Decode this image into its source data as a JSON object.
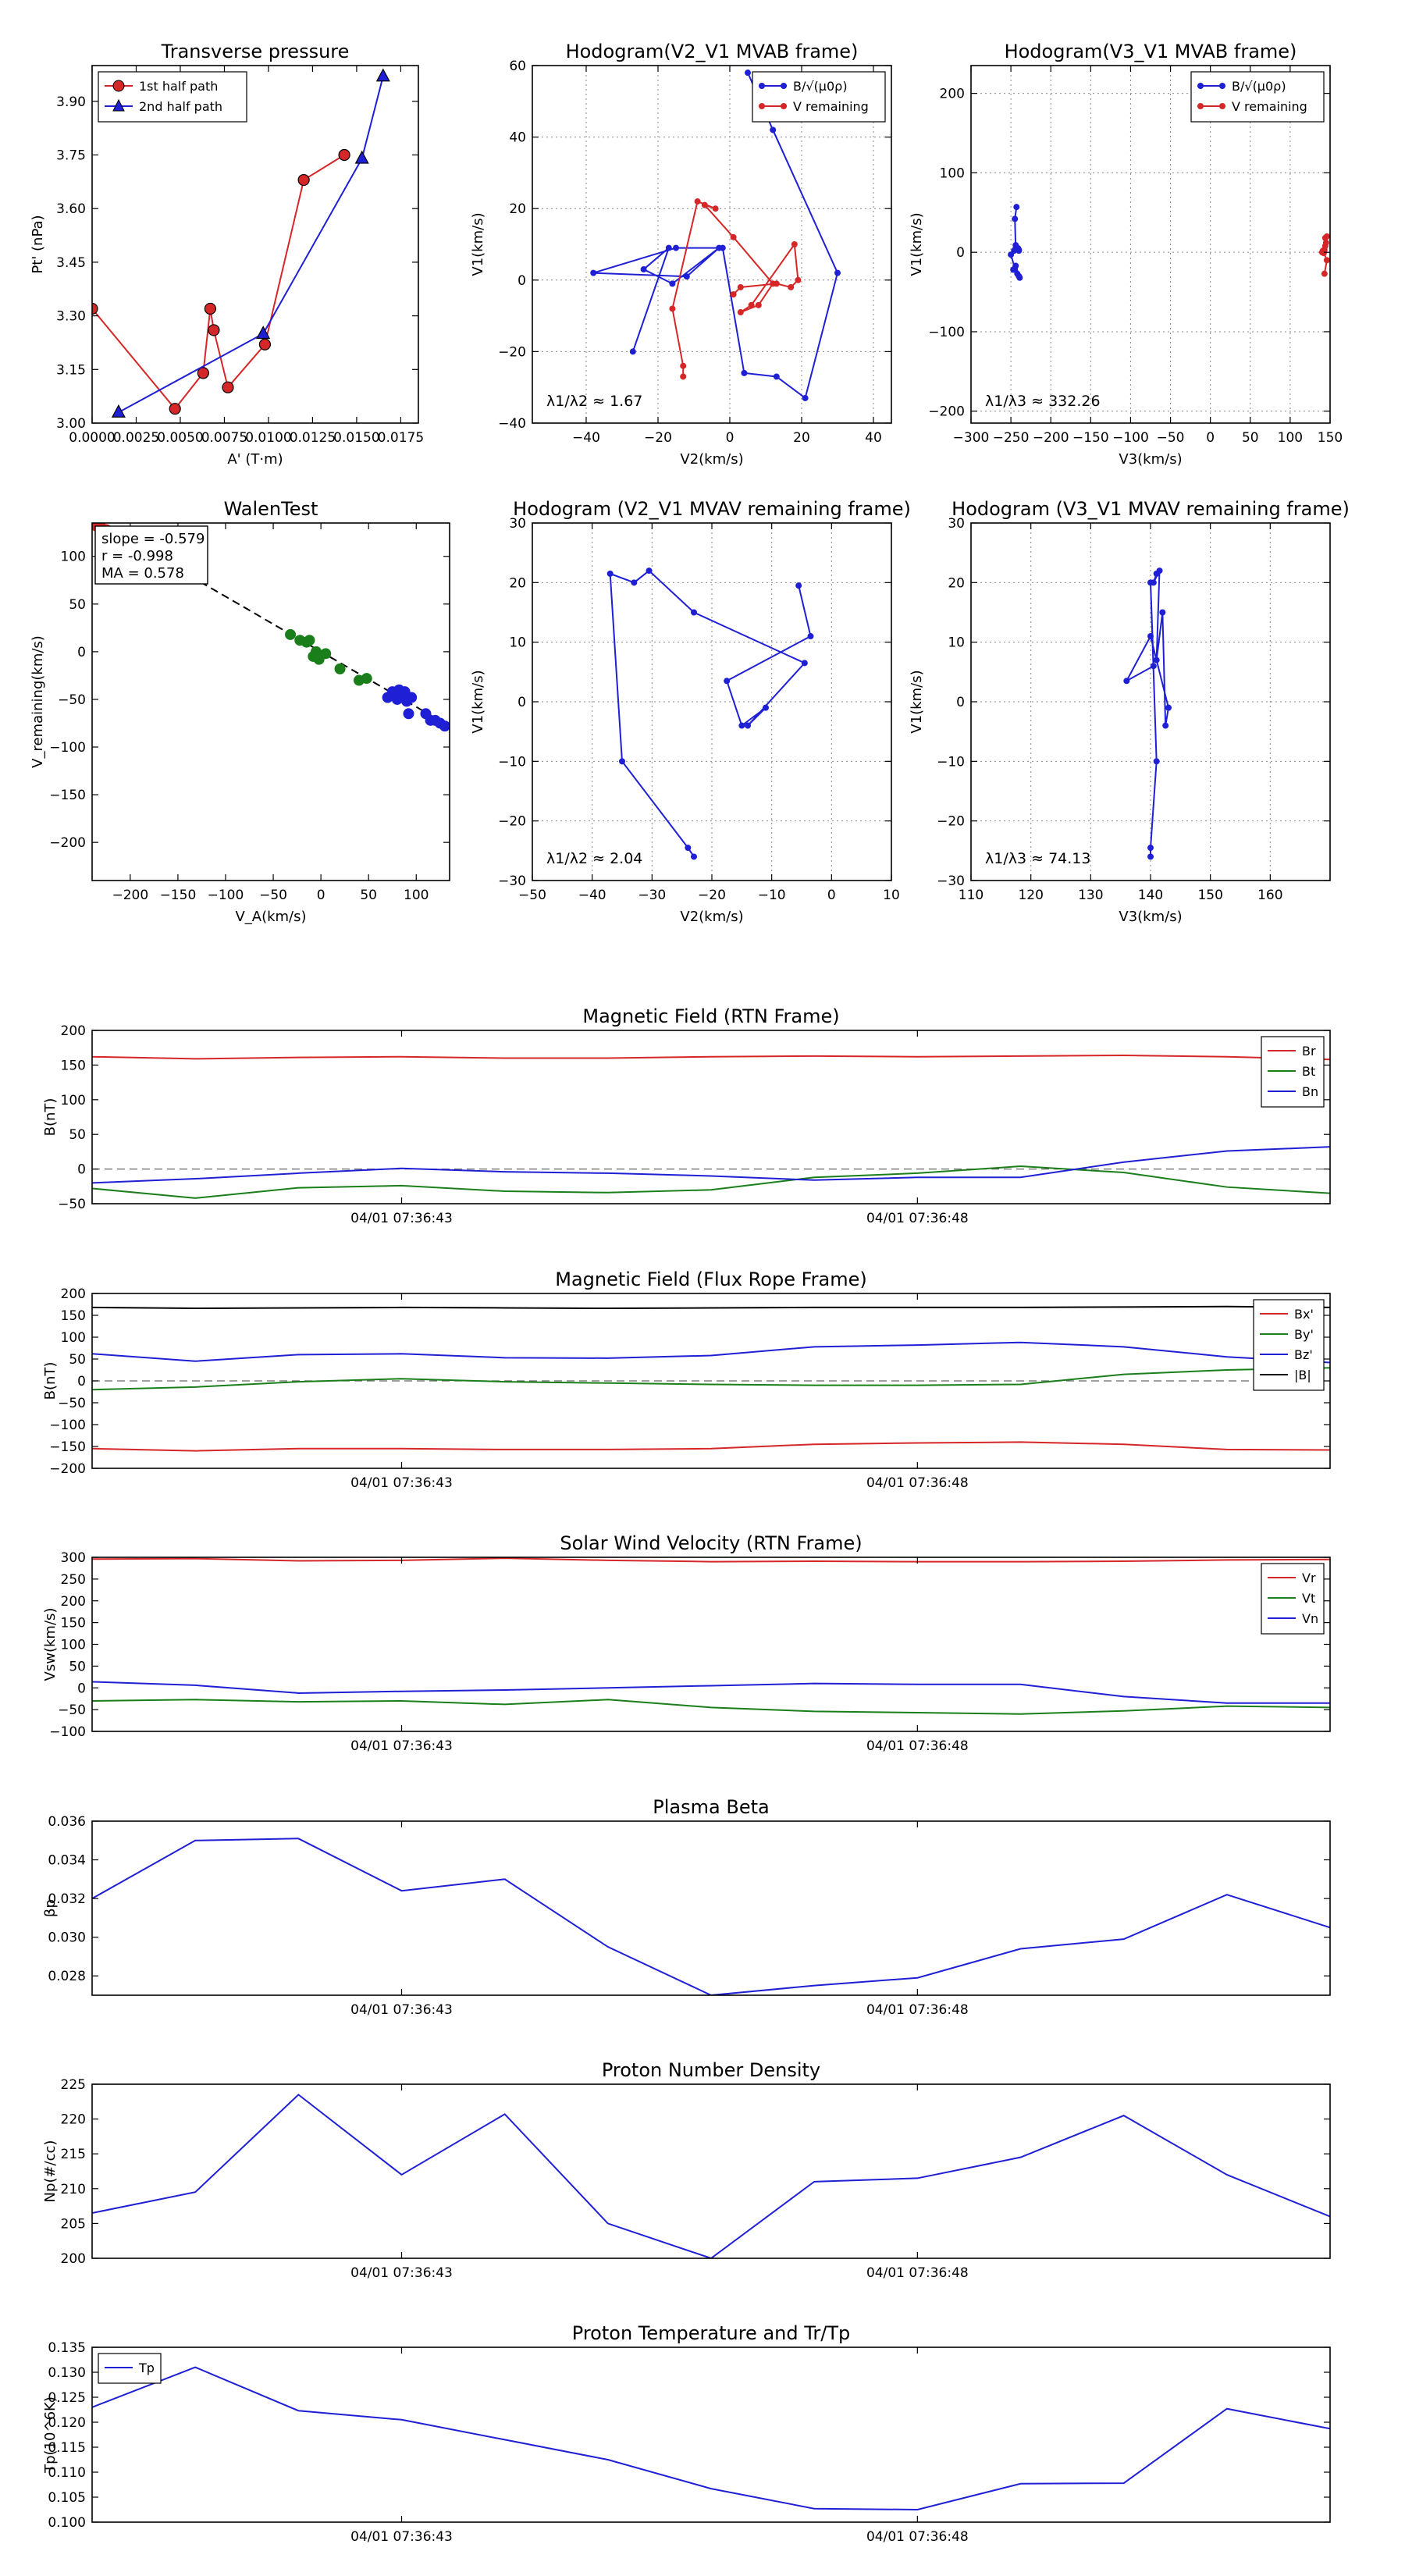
{
  "chart_data": [
    {
      "id": "p1",
      "type": "line",
      "title": "Transverse pressure",
      "xlabel": "A' (T·m)",
      "ylabel": "Pt' (nPa)",
      "xlim": [
        0,
        0.0185
      ],
      "ylim": [
        3.0,
        4.0
      ],
      "xticks": [
        0,
        0.0025,
        0.005,
        0.0075,
        0.01,
        0.0125,
        0.015,
        0.0175
      ],
      "xtick_labels": [
        "0.0000",
        "0.0025",
        "0.0050",
        "0.0075",
        "0.0100",
        "0.0125",
        "0.0150",
        "0.0175"
      ],
      "yticks": [
        3.0,
        3.15,
        3.3,
        3.45,
        3.6,
        3.75,
        3.9
      ],
      "ytick_labels": [
        "3.00",
        "3.15",
        "3.30",
        "3.45",
        "3.60",
        "3.75",
        "3.90"
      ],
      "legend": "top-left",
      "grid": false,
      "series": [
        {
          "name": "1st half path",
          "color": "#d62728",
          "marker": "circle",
          "x": [
            0,
            0.0047,
            0.0063,
            0.0067,
            0.0069,
            0.0077,
            0.0098,
            0.012,
            0.0143
          ],
          "y": [
            3.32,
            3.04,
            3.14,
            3.32,
            3.26,
            3.1,
            3.22,
            3.68,
            3.75
          ]
        },
        {
          "name": "2nd half path",
          "color": "#1f1fd6",
          "marker": "triangle",
          "x": [
            0.0015,
            0.0097,
            0.0153,
            0.0165
          ],
          "y": [
            3.03,
            3.25,
            3.74,
            3.97
          ]
        }
      ]
    },
    {
      "id": "p2",
      "type": "line",
      "title": "Hodogram(V2_V1 MVAB frame)",
      "xlabel": "V2(km/s)",
      "ylabel": "V1(km/s)",
      "xlim": [
        -55,
        45
      ],
      "ylim": [
        -40,
        60
      ],
      "xticks": [
        -40,
        -20,
        0,
        20,
        40
      ],
      "xtick_labels": [
        "−40",
        "−20",
        "0",
        "20",
        "40"
      ],
      "yticks": [
        -40,
        -20,
        0,
        20,
        40,
        60
      ],
      "ytick_labels": [
        "−40",
        "−20",
        "0",
        "20",
        "40",
        "60"
      ],
      "legend": "top-right",
      "grid": true,
      "annotation": "λ1/λ2 ≈ 1.67",
      "series": [
        {
          "name": "B/√(μ0ρ)",
          "color": "#1f1fd6",
          "marker": "dot",
          "x": [
            5,
            12,
            30,
            21,
            13,
            4,
            -2,
            -15,
            -38,
            -12,
            -3,
            -16,
            -24,
            -17,
            -27
          ],
          "y": [
            58,
            42,
            2,
            -33,
            -27,
            -26,
            9,
            9,
            2,
            1,
            9,
            -1,
            3,
            9,
            -20
          ]
        },
        {
          "name": "V remaining",
          "color": "#d62728",
          "marker": "dot",
          "x": [
            -13,
            -13,
            -16,
            -9,
            -4,
            -7,
            1,
            12,
            8,
            3,
            6,
            18,
            19,
            17,
            13,
            3,
            1
          ],
          "y": [
            -27,
            -24,
            -8,
            22,
            20,
            21,
            12,
            -1,
            -7,
            -9,
            -7,
            10,
            0,
            -2,
            -1,
            -2,
            -4
          ]
        }
      ]
    },
    {
      "id": "p3",
      "type": "line",
      "title": "Hodogram(V3_V1 MVAB frame)",
      "xlabel": "V3(km/s)",
      "ylabel": "V1(km/s)",
      "xlim": [
        -300,
        150
      ],
      "ylim": [
        -215,
        235
      ],
      "xticks": [
        -300,
        -250,
        -200,
        -150,
        -100,
        -50,
        0,
        50,
        100,
        150
      ],
      "xtick_labels": [
        "−300",
        "−250",
        "−200",
        "−150",
        "−100",
        "−50",
        "0",
        "50",
        "100",
        "150"
      ],
      "yticks": [
        -200,
        -100,
        0,
        100,
        200
      ],
      "ytick_labels": [
        "−200",
        "−100",
        "0",
        "100",
        "200"
      ],
      "legend": "top-right",
      "grid": true,
      "annotation": "λ1/λ3 ≈ 332.26",
      "series": [
        {
          "name": "B/√(μ0ρ)",
          "color": "#1f1fd6",
          "marker": "dot",
          "x": [
            -243,
            -245,
            -244,
            -240,
            -241,
            -246,
            -244,
            -240,
            -250,
            -245,
            -242,
            -240,
            -247,
            -244,
            -239
          ],
          "y": [
            57,
            42,
            5,
            2,
            5,
            2,
            9,
            3,
            -3,
            -20,
            -27,
            -30,
            -22,
            -17,
            -32
          ]
        },
        {
          "name": "V remaining",
          "color": "#d62728",
          "marker": "dot",
          "x": [
            143,
            146,
            141,
            142,
            144,
            140,
            143,
            145,
            146,
            144
          ],
          "y": [
            -27,
            -10,
            2,
            -1,
            8,
            0,
            3,
            12,
            20,
            18
          ]
        }
      ]
    },
    {
      "id": "p4",
      "type": "scatter",
      "title": "WalenTest",
      "xlabel": "V_A(km/s)",
      "ylabel": "V_remaining(km/s)",
      "xlim": [
        -240,
        135
      ],
      "ylim": [
        -240,
        135
      ],
      "xticks": [
        -200,
        -150,
        -100,
        -50,
        0,
        50,
        100
      ],
      "xtick_labels": [
        "−200",
        "−150",
        "−100",
        "−50",
        "0",
        "50",
        "100"
      ],
      "yticks": [
        -200,
        -150,
        -100,
        -50,
        0,
        50,
        100
      ],
      "ytick_labels": [
        "−200",
        "−150",
        "−100",
        "−50",
        "0",
        "50",
        "100"
      ],
      "grid": false,
      "legend_box": [
        "slope = -0.579",
        "r = -0.998",
        "MA = 0.578"
      ],
      "fit_line": {
        "slope": -0.579,
        "x": [
          -240,
          130
        ]
      },
      "series": [
        {
          "name": "green",
          "color": "#1a7f1a",
          "x": [
            -32,
            -22,
            -15,
            -12,
            -5,
            -2,
            5,
            20,
            40,
            48,
            -8
          ],
          "y": [
            18,
            12,
            10,
            12,
            0,
            -8,
            -2,
            -18,
            -30,
            -28,
            -5
          ]
        },
        {
          "name": "blue",
          "color": "#1f1fd6",
          "x": [
            70,
            75,
            80,
            85,
            90,
            95,
            82,
            88,
            92,
            110,
            115,
            120,
            125,
            130
          ],
          "y": [
            -48,
            -42,
            -50,
            -45,
            -52,
            -48,
            -40,
            -42,
            -65,
            -65,
            -72,
            -72,
            -75,
            -78
          ]
        },
        {
          "name": "red",
          "color": "#d62728",
          "x": [
            -236,
            -230,
            -225
          ],
          "y": [
            132,
            130,
            128
          ]
        }
      ]
    },
    {
      "id": "p5",
      "type": "line",
      "title": "Hodogram (V2_V1 MVAV remaining frame)",
      "xlabel": "V2(km/s)",
      "ylabel": "V1(km/s)",
      "xlim": [
        -50,
        10
      ],
      "ylim": [
        -30,
        30
      ],
      "xticks": [
        -50,
        -40,
        -30,
        -20,
        -10,
        0,
        10
      ],
      "xtick_labels": [
        "−50",
        "−40",
        "−30",
        "−20",
        "−10",
        "0",
        "10"
      ],
      "yticks": [
        -30,
        -20,
        -10,
        0,
        10,
        20,
        30
      ],
      "ytick_labels": [
        "−30",
        "−20",
        "−10",
        "0",
        "10",
        "20",
        "30"
      ],
      "grid": true,
      "annotation": "λ1/λ2 ≈ 2.04",
      "series": [
        {
          "name": "V",
          "color": "#1f1fd6",
          "marker": "dot",
          "x": [
            -5.5,
            -3.5,
            -17.5,
            -15,
            -11,
            -14,
            -4.5,
            -23,
            -30.5,
            -33,
            -37,
            -35,
            -24,
            -23
          ],
          "y": [
            19.5,
            11,
            3.5,
            -4,
            -1,
            -4,
            6.5,
            15,
            22,
            20,
            21.5,
            -10,
            -24.5,
            -26
          ]
        }
      ]
    },
    {
      "id": "p6",
      "type": "line",
      "title": "Hodogram (V3_V1 MVAV remaining frame)",
      "xlabel": "V3(km/s)",
      "ylabel": "V1(km/s)",
      "xlim": [
        110,
        170
      ],
      "ylim": [
        -30,
        30
      ],
      "xticks": [
        110,
        120,
        130,
        140,
        150,
        160
      ],
      "xtick_labels": [
        "110",
        "120",
        "130",
        "140",
        "150",
        "160"
      ],
      "yticks": [
        -30,
        -20,
        -10,
        0,
        10,
        20,
        30
      ],
      "ytick_labels": [
        "−30",
        "−20",
        "−10",
        "0",
        "10",
        "20",
        "30"
      ],
      "grid": true,
      "annotation": "λ1/λ3 ≈ 74.13",
      "series": [
        {
          "name": "V",
          "color": "#1f1fd6",
          "marker": "dot",
          "x": [
            141,
            140.5,
            141.5,
            141,
            142,
            142.5,
            143,
            140,
            136,
            140.5,
            140,
            141,
            140,
            140
          ],
          "y": [
            21.5,
            20,
            22,
            7,
            15,
            -4,
            -1,
            11,
            3.5,
            6,
            20,
            -10,
            -24.5,
            -26
          ]
        }
      ]
    },
    {
      "id": "p7",
      "type": "line",
      "title": "Magnetic Field (RTN Frame)",
      "xlabel": "",
      "ylabel": "B(nT)",
      "xlim": [
        0,
        12
      ],
      "ylim": [
        -50,
        200
      ],
      "xticks": [
        3,
        8
      ],
      "xtick_labels": [
        "04/01 07:36:43",
        "04/01 07:36:48"
      ],
      "yticks": [
        -50,
        0,
        50,
        100,
        150,
        200
      ],
      "ytick_labels": [
        "−50",
        "0",
        "50",
        "100",
        "150",
        "200"
      ],
      "zero_line": true,
      "legend": "top-right",
      "grid": false,
      "series": [
        {
          "name": "Br",
          "color": "#d62728",
          "y": [
            162,
            159,
            161,
            162,
            160,
            160,
            162,
            163,
            162,
            163,
            164,
            162,
            158
          ]
        },
        {
          "name": "Bt",
          "color": "#1a7f1a",
          "y": [
            -28,
            -42,
            -27,
            -24,
            -32,
            -34,
            -30,
            -12,
            -6,
            4,
            -5,
            -26,
            -35
          ]
        },
        {
          "name": "Bn",
          "color": "#1f1fd6",
          "y": [
            -20,
            -14,
            -6,
            1,
            -4,
            -6,
            -10,
            -16,
            -12,
            -12,
            10,
            26,
            32
          ]
        }
      ]
    },
    {
      "id": "p8",
      "type": "line",
      "title": "Magnetic Field (Flux Rope Frame)",
      "xlabel": "",
      "ylabel": "B(nT)",
      "xlim": [
        0,
        12
      ],
      "ylim": [
        -200,
        200
      ],
      "xticks": [
        3,
        8
      ],
      "xtick_labels": [
        "04/01 07:36:43",
        "04/01 07:36:48"
      ],
      "yticks": [
        -200,
        -150,
        -100,
        -50,
        0,
        50,
        100,
        150,
        200
      ],
      "ytick_labels": [
        "−200",
        "−150",
        "−100",
        "−50",
        "0",
        "50",
        "100",
        "150",
        "200"
      ],
      "zero_line": true,
      "legend": "top-right",
      "grid": false,
      "series": [
        {
          "name": "Bx'",
          "color": "#d62728",
          "y": [
            -155,
            -160,
            -155,
            -155,
            -157,
            -157,
            -155,
            -145,
            -142,
            -140,
            -145,
            -157,
            -158
          ]
        },
        {
          "name": "By'",
          "color": "#1a7f1a",
          "y": [
            -20,
            -14,
            -2,
            5,
            -2,
            -5,
            -8,
            -10,
            -10,
            -8,
            15,
            25,
            30
          ]
        },
        {
          "name": "Bz'",
          "color": "#1f1fd6",
          "y": [
            62,
            45,
            60,
            62,
            53,
            52,
            58,
            78,
            82,
            88,
            78,
            55,
            42
          ]
        },
        {
          "name": "|B|",
          "color": "#000000",
          "y": [
            168,
            166,
            167,
            168,
            167,
            166,
            167,
            168,
            168,
            168,
            169,
            170,
            168
          ]
        }
      ]
    },
    {
      "id": "p9",
      "type": "line",
      "title": "Solar Wind Velocity (RTN Frame)",
      "xlabel": "",
      "ylabel": "Vsw(km/s)",
      "xlim": [
        0,
        12
      ],
      "ylim": [
        -100,
        300
      ],
      "xticks": [
        3,
        8
      ],
      "xtick_labels": [
        "04/01 07:36:43",
        "04/01 07:36:48"
      ],
      "yticks": [
        -100,
        -50,
        0,
        50,
        100,
        150,
        200,
        250,
        300
      ],
      "ytick_labels": [
        "−100",
        "−50",
        "0",
        "50",
        "100",
        "150",
        "200",
        "250",
        "300"
      ],
      "legend": "top-right",
      "grid": false,
      "series": [
        {
          "name": "Vr",
          "color": "#d62728",
          "y": [
            296,
            297,
            292,
            293,
            298,
            293,
            290,
            291,
            290,
            290,
            291,
            294,
            295
          ]
        },
        {
          "name": "Vt",
          "color": "#1a7f1a",
          "y": [
            -30,
            -27,
            -32,
            -30,
            -38,
            -27,
            -45,
            -54,
            -57,
            -60,
            -53,
            -42,
            -45
          ]
        },
        {
          "name": "Vn",
          "color": "#1f1fd6",
          "y": [
            14,
            6,
            -12,
            -8,
            -5,
            0,
            5,
            10,
            8,
            8,
            -20,
            -35,
            -35
          ]
        }
      ]
    },
    {
      "id": "p10",
      "type": "line",
      "title": "Plasma Beta",
      "xlabel": "",
      "ylabel": "βp",
      "xlim": [
        0,
        12
      ],
      "ylim": [
        0.027,
        0.036
      ],
      "xticks": [
        3,
        8
      ],
      "xtick_labels": [
        "04/01 07:36:43",
        "04/01 07:36:48"
      ],
      "yticks": [
        0.028,
        0.03,
        0.032,
        0.034,
        0.036
      ],
      "ytick_labels": [
        "0.028",
        "0.030",
        "0.032",
        "0.034",
        "0.036"
      ],
      "grid": false,
      "series": [
        {
          "name": "beta",
          "color": "#1f1fd6",
          "y": [
            0.032,
            0.035,
            0.0351,
            0.0324,
            0.033,
            0.0295,
            0.027,
            0.0275,
            0.0279,
            0.0294,
            0.0299,
            0.0322,
            0.0305
          ]
        }
      ]
    },
    {
      "id": "p11",
      "type": "line",
      "title": "Proton Number Density",
      "xlabel": "",
      "ylabel": "Np(#/cc)",
      "xlim": [
        0,
        12
      ],
      "ylim": [
        200,
        225
      ],
      "xticks": [
        3,
        8
      ],
      "xtick_labels": [
        "04/01 07:36:43",
        "04/01 07:36:48"
      ],
      "yticks": [
        200,
        205,
        210,
        215,
        220,
        225
      ],
      "ytick_labels": [
        "200",
        "205",
        "210",
        "215",
        "220",
        "225"
      ],
      "grid": false,
      "series": [
        {
          "name": "Np",
          "color": "#1f1fd6",
          "y": [
            206.5,
            209.5,
            223.5,
            212,
            220.7,
            205,
            200,
            211,
            211.5,
            214.5,
            220.5,
            212,
            206
          ]
        }
      ]
    },
    {
      "id": "p12",
      "type": "line",
      "title": "Proton Temperature and Tr/Tp",
      "xlabel": "",
      "ylabel": "Tp(10^6K)",
      "xlim": [
        0,
        12
      ],
      "ylim": [
        0.1,
        0.135
      ],
      "xticks": [
        3,
        8
      ],
      "xtick_labels": [
        "04/01 07:36:43",
        "04/01 07:36:48"
      ],
      "yticks": [
        0.1,
        0.105,
        0.11,
        0.115,
        0.12,
        0.125,
        0.13,
        0.135
      ],
      "ytick_labels": [
        "0.100",
        "0.105",
        "0.110",
        "0.115",
        "0.120",
        "0.125",
        "0.130",
        "0.135"
      ],
      "legend": "top-left",
      "grid": false,
      "series": [
        {
          "name": "Tp",
          "color": "#1f1fd6",
          "y": [
            0.123,
            0.131,
            0.1223,
            0.1205,
            0.1165,
            0.1125,
            0.1067,
            0.1027,
            0.1025,
            0.1077,
            0.1078,
            0.1227,
            0.1187
          ]
        }
      ]
    }
  ]
}
